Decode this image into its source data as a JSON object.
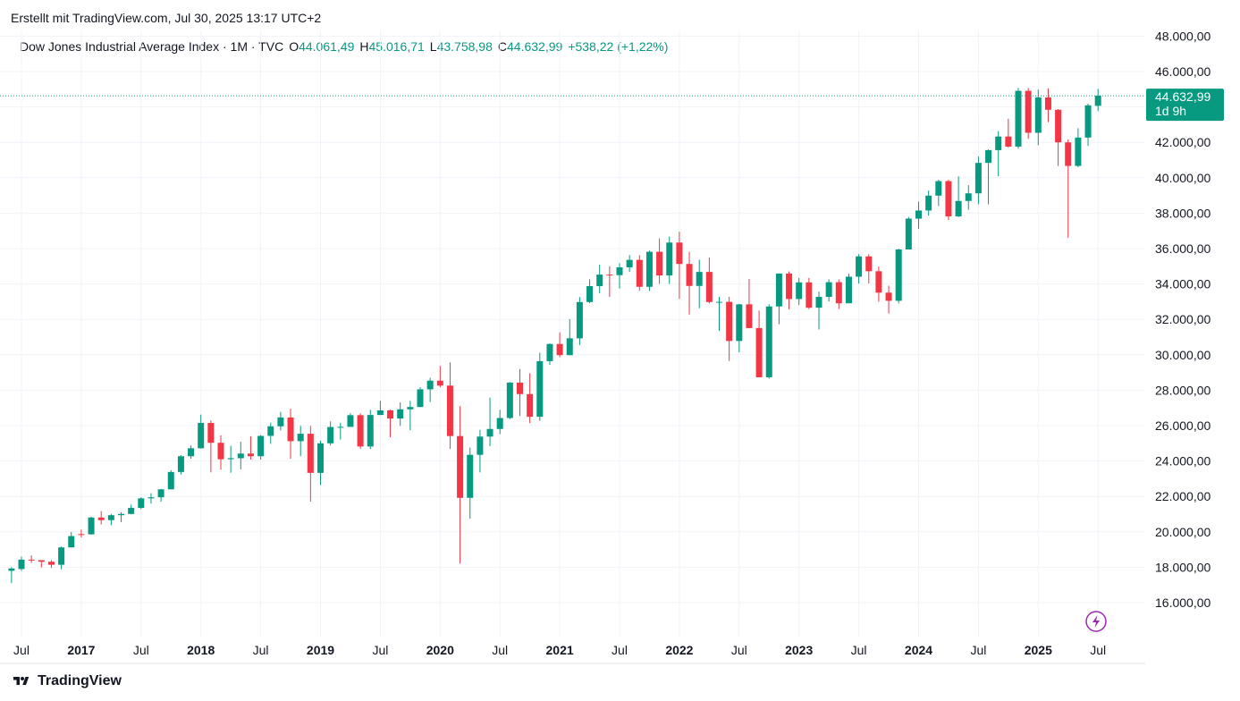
{
  "header": {
    "created_text": "Erstellt mit TradingView.com, Jul 30, 2025 13:17 UTC+2"
  },
  "legend": {
    "symbol": "Dow Jones Industrial Average Index · 1M · TVC",
    "open_label": "O",
    "open_value": "44.061,49",
    "high_label": "H",
    "high_value": "45.016,71",
    "low_label": "L",
    "low_value": "43.758,98",
    "close_label": "C",
    "close_value": "44.632,99",
    "change": "+538,22 (+1,22%)"
  },
  "price_badge": {
    "price": "44.632,99",
    "countdown": "1d 9h"
  },
  "footer": {
    "brand": "TradingView"
  },
  "colors": {
    "up": "#089981",
    "down": "#F23645",
    "grid": "#F0F3FA",
    "text": "#131722",
    "badge": "#089981",
    "lightning": "#9C27B0"
  },
  "chart_data": {
    "type": "candlestick",
    "interval": "1M",
    "y_range": [
      14000,
      48500
    ],
    "y_ticks": [
      16000,
      18000,
      20000,
      22000,
      24000,
      26000,
      28000,
      30000,
      32000,
      34000,
      36000,
      38000,
      40000,
      42000,
      44000,
      46000,
      48000
    ],
    "y_tick_labels": [
      "16.000,00",
      "18.000,00",
      "20.000,00",
      "22.000,00",
      "24.000,00",
      "26.000,00",
      "28.000,00",
      "30.000,00",
      "32.000,00",
      "34.000,00",
      "36.000,00",
      "38.000,00",
      "40.000,00",
      "42.000,00",
      "44.000,00",
      "46.000,00",
      "48.000,00"
    ],
    "x_ticks": [
      {
        "label": "Jul",
        "date": "2016-07",
        "year": false
      },
      {
        "label": "2017",
        "date": "2017-01",
        "year": true
      },
      {
        "label": "Jul",
        "date": "2017-07",
        "year": false
      },
      {
        "label": "2018",
        "date": "2018-01",
        "year": true
      },
      {
        "label": "Jul",
        "date": "2018-07",
        "year": false
      },
      {
        "label": "2019",
        "date": "2019-01",
        "year": true
      },
      {
        "label": "Jul",
        "date": "2019-07",
        "year": false
      },
      {
        "label": "2020",
        "date": "2020-01",
        "year": true
      },
      {
        "label": "Jul",
        "date": "2020-07",
        "year": false
      },
      {
        "label": "2021",
        "date": "2021-01",
        "year": true
      },
      {
        "label": "Jul",
        "date": "2021-07",
        "year": false
      },
      {
        "label": "2022",
        "date": "2022-01",
        "year": true
      },
      {
        "label": "Jul",
        "date": "2022-07",
        "year": false
      },
      {
        "label": "2023",
        "date": "2023-01",
        "year": true
      },
      {
        "label": "Jul",
        "date": "2023-07",
        "year": false
      },
      {
        "label": "2024",
        "date": "2024-01",
        "year": true
      },
      {
        "label": "Jul",
        "date": "2024-07",
        "year": false
      },
      {
        "label": "2025",
        "date": "2025-01",
        "year": true
      },
      {
        "label": "Jul",
        "date": "2025-07",
        "year": false
      }
    ],
    "last_price": 44632.99,
    "candles": [
      {
        "d": "2016-06",
        "o": 17800,
        "h": 18000,
        "l": 17100,
        "c": 17930
      },
      {
        "d": "2016-07",
        "o": 17900,
        "h": 18600,
        "l": 17800,
        "c": 18430
      },
      {
        "d": "2016-08",
        "o": 18430,
        "h": 18670,
        "l": 18240,
        "c": 18400
      },
      {
        "d": "2016-09",
        "o": 18400,
        "h": 18400,
        "l": 17990,
        "c": 18310
      },
      {
        "d": "2016-10",
        "o": 18310,
        "h": 18400,
        "l": 17960,
        "c": 18140
      },
      {
        "d": "2016-11",
        "o": 18140,
        "h": 19170,
        "l": 17880,
        "c": 19120
      },
      {
        "d": "2016-12",
        "o": 19120,
        "h": 19990,
        "l": 19120,
        "c": 19760
      },
      {
        "d": "2017-01",
        "o": 19870,
        "h": 20130,
        "l": 19680,
        "c": 19860
      },
      {
        "d": "2017-02",
        "o": 19860,
        "h": 20850,
        "l": 19830,
        "c": 20810
      },
      {
        "d": "2017-03",
        "o": 20810,
        "h": 21170,
        "l": 20410,
        "c": 20660
      },
      {
        "d": "2017-04",
        "o": 20660,
        "h": 21010,
        "l": 20380,
        "c": 20940
      },
      {
        "d": "2017-05",
        "o": 20940,
        "h": 21110,
        "l": 20550,
        "c": 21010
      },
      {
        "d": "2017-06",
        "o": 21010,
        "h": 21530,
        "l": 20990,
        "c": 21350
      },
      {
        "d": "2017-07",
        "o": 21350,
        "h": 21950,
        "l": 21280,
        "c": 21890
      },
      {
        "d": "2017-08",
        "o": 21890,
        "h": 22180,
        "l": 21600,
        "c": 21950
      },
      {
        "d": "2017-09",
        "o": 21950,
        "h": 22420,
        "l": 21700,
        "c": 22400
      },
      {
        "d": "2017-10",
        "o": 22400,
        "h": 23480,
        "l": 22400,
        "c": 23380
      },
      {
        "d": "2017-11",
        "o": 23380,
        "h": 24330,
        "l": 23240,
        "c": 24270
      },
      {
        "d": "2017-12",
        "o": 24270,
        "h": 24880,
        "l": 24130,
        "c": 24720
      },
      {
        "d": "2018-01",
        "o": 24720,
        "h": 26620,
        "l": 24700,
        "c": 26150
      },
      {
        "d": "2018-02",
        "o": 26150,
        "h": 26300,
        "l": 23360,
        "c": 25030
      },
      {
        "d": "2018-03",
        "o": 25030,
        "h": 25450,
        "l": 23510,
        "c": 24100
      },
      {
        "d": "2018-04",
        "o": 24100,
        "h": 24860,
        "l": 23340,
        "c": 24160
      },
      {
        "d": "2018-05",
        "o": 24160,
        "h": 25090,
        "l": 23530,
        "c": 24420
      },
      {
        "d": "2018-06",
        "o": 24420,
        "h": 25400,
        "l": 24080,
        "c": 24270
      },
      {
        "d": "2018-07",
        "o": 24270,
        "h": 25460,
        "l": 24080,
        "c": 25420
      },
      {
        "d": "2018-08",
        "o": 25420,
        "h": 26170,
        "l": 24970,
        "c": 25960
      },
      {
        "d": "2018-09",
        "o": 25960,
        "h": 26770,
        "l": 25730,
        "c": 26460
      },
      {
        "d": "2018-10",
        "o": 26460,
        "h": 26950,
        "l": 24120,
        "c": 25120
      },
      {
        "d": "2018-11",
        "o": 25120,
        "h": 25980,
        "l": 24270,
        "c": 25540
      },
      {
        "d": "2018-12",
        "o": 25540,
        "h": 25980,
        "l": 21710,
        "c": 23330
      },
      {
        "d": "2019-01",
        "o": 23330,
        "h": 25150,
        "l": 22640,
        "c": 25000
      },
      {
        "d": "2019-02",
        "o": 25000,
        "h": 26240,
        "l": 24880,
        "c": 25920
      },
      {
        "d": "2019-03",
        "o": 25920,
        "h": 26160,
        "l": 25210,
        "c": 25930
      },
      {
        "d": "2019-04",
        "o": 25930,
        "h": 26700,
        "l": 25930,
        "c": 26590
      },
      {
        "d": "2019-05",
        "o": 26590,
        "h": 26700,
        "l": 24690,
        "c": 24820
      },
      {
        "d": "2019-06",
        "o": 24820,
        "h": 26900,
        "l": 24680,
        "c": 26600
      },
      {
        "d": "2019-07",
        "o": 26600,
        "h": 27400,
        "l": 26600,
        "c": 26860
      },
      {
        "d": "2019-08",
        "o": 26860,
        "h": 26900,
        "l": 25340,
        "c": 26400
      },
      {
        "d": "2019-09",
        "o": 26400,
        "h": 27310,
        "l": 25980,
        "c": 26920
      },
      {
        "d": "2019-10",
        "o": 26920,
        "h": 27400,
        "l": 25740,
        "c": 27050
      },
      {
        "d": "2019-11",
        "o": 27050,
        "h": 28170,
        "l": 27050,
        "c": 28050
      },
      {
        "d": "2019-12",
        "o": 28050,
        "h": 28700,
        "l": 27330,
        "c": 28540
      },
      {
        "d": "2020-01",
        "o": 28540,
        "h": 29370,
        "l": 28170,
        "c": 28260
      },
      {
        "d": "2020-02",
        "o": 28260,
        "h": 29570,
        "l": 24680,
        "c": 25410
      },
      {
        "d": "2020-03",
        "o": 25410,
        "h": 27100,
        "l": 18210,
        "c": 21920
      },
      {
        "d": "2020-04",
        "o": 21920,
        "h": 24760,
        "l": 20740,
        "c": 24350
      },
      {
        "d": "2020-05",
        "o": 24350,
        "h": 25760,
        "l": 23360,
        "c": 25380
      },
      {
        "d": "2020-06",
        "o": 25380,
        "h": 27580,
        "l": 24840,
        "c": 25810
      },
      {
        "d": "2020-07",
        "o": 25810,
        "h": 26890,
        "l": 25520,
        "c": 26430
      },
      {
        "d": "2020-08",
        "o": 26430,
        "h": 28460,
        "l": 26370,
        "c": 28430
      },
      {
        "d": "2020-09",
        "o": 28430,
        "h": 29200,
        "l": 26540,
        "c": 27780
      },
      {
        "d": "2020-10",
        "o": 27780,
        "h": 28960,
        "l": 26140,
        "c": 26500
      },
      {
        "d": "2020-11",
        "o": 26500,
        "h": 30120,
        "l": 26270,
        "c": 29640
      },
      {
        "d": "2020-12",
        "o": 29640,
        "h": 30640,
        "l": 29430,
        "c": 30610
      },
      {
        "d": "2021-01",
        "o": 30610,
        "h": 31270,
        "l": 29860,
        "c": 29980
      },
      {
        "d": "2021-02",
        "o": 29980,
        "h": 32010,
        "l": 29980,
        "c": 30930
      },
      {
        "d": "2021-03",
        "o": 30930,
        "h": 33260,
        "l": 30550,
        "c": 32980
      },
      {
        "d": "2021-04",
        "o": 32980,
        "h": 34260,
        "l": 32920,
        "c": 33880
      },
      {
        "d": "2021-05",
        "o": 33880,
        "h": 35090,
        "l": 33470,
        "c": 34530
      },
      {
        "d": "2021-06",
        "o": 34530,
        "h": 35000,
        "l": 33270,
        "c": 34500
      },
      {
        "d": "2021-07",
        "o": 34500,
        "h": 35170,
        "l": 33740,
        "c": 34940
      },
      {
        "d": "2021-08",
        "o": 34940,
        "h": 35630,
        "l": 34690,
        "c": 35360
      },
      {
        "d": "2021-09",
        "o": 35360,
        "h": 35630,
        "l": 33610,
        "c": 33840
      },
      {
        "d": "2021-10",
        "o": 33840,
        "h": 35890,
        "l": 33610,
        "c": 35820
      },
      {
        "d": "2021-11",
        "o": 35820,
        "h": 36570,
        "l": 34010,
        "c": 34480
      },
      {
        "d": "2021-12",
        "o": 34480,
        "h": 36680,
        "l": 34000,
        "c": 36340
      },
      {
        "d": "2022-01",
        "o": 36340,
        "h": 36950,
        "l": 33150,
        "c": 35130
      },
      {
        "d": "2022-02",
        "o": 35130,
        "h": 35820,
        "l": 32270,
        "c": 33890
      },
      {
        "d": "2022-03",
        "o": 33890,
        "h": 35370,
        "l": 32630,
        "c": 34680
      },
      {
        "d": "2022-04",
        "o": 34680,
        "h": 35490,
        "l": 32910,
        "c": 32980
      },
      {
        "d": "2022-05",
        "o": 32980,
        "h": 33270,
        "l": 31350,
        "c": 32990
      },
      {
        "d": "2022-06",
        "o": 32990,
        "h": 33270,
        "l": 29650,
        "c": 30780
      },
      {
        "d": "2022-07",
        "o": 30780,
        "h": 32880,
        "l": 30140,
        "c": 32850
      },
      {
        "d": "2022-08",
        "o": 32850,
        "h": 34280,
        "l": 31510,
        "c": 31510
      },
      {
        "d": "2022-09",
        "o": 31510,
        "h": 32500,
        "l": 28720,
        "c": 28730
      },
      {
        "d": "2022-10",
        "o": 28730,
        "h": 32860,
        "l": 28660,
        "c": 32730
      },
      {
        "d": "2022-11",
        "o": 32730,
        "h": 34590,
        "l": 31730,
        "c": 34590
      },
      {
        "d": "2022-12",
        "o": 34590,
        "h": 34710,
        "l": 32570,
        "c": 33150
      },
      {
        "d": "2023-01",
        "o": 33150,
        "h": 34340,
        "l": 32810,
        "c": 34090
      },
      {
        "d": "2023-02",
        "o": 34090,
        "h": 34340,
        "l": 32580,
        "c": 32660
      },
      {
        "d": "2023-03",
        "o": 32660,
        "h": 33570,
        "l": 31430,
        "c": 33270
      },
      {
        "d": "2023-04",
        "o": 33270,
        "h": 34260,
        "l": 33010,
        "c": 34100
      },
      {
        "d": "2023-05",
        "o": 34100,
        "h": 34260,
        "l": 32590,
        "c": 32910
      },
      {
        "d": "2023-06",
        "o": 32910,
        "h": 34590,
        "l": 32910,
        "c": 34410
      },
      {
        "d": "2023-07",
        "o": 34410,
        "h": 35680,
        "l": 34020,
        "c": 35560
      },
      {
        "d": "2023-08",
        "o": 35560,
        "h": 35680,
        "l": 34030,
        "c": 34720
      },
      {
        "d": "2023-09",
        "o": 34720,
        "h": 34980,
        "l": 33000,
        "c": 33510
      },
      {
        "d": "2023-10",
        "o": 33510,
        "h": 33910,
        "l": 32330,
        "c": 33050
      },
      {
        "d": "2023-11",
        "o": 33050,
        "h": 35990,
        "l": 32900,
        "c": 35950
      },
      {
        "d": "2023-12",
        "o": 35950,
        "h": 37780,
        "l": 35950,
        "c": 37690
      },
      {
        "d": "2024-01",
        "o": 37690,
        "h": 38650,
        "l": 37120,
        "c": 38150
      },
      {
        "d": "2024-02",
        "o": 38150,
        "h": 39280,
        "l": 37860,
        "c": 38990
      },
      {
        "d": "2024-03",
        "o": 38990,
        "h": 39890,
        "l": 38400,
        "c": 39810
      },
      {
        "d": "2024-04",
        "o": 39810,
        "h": 39890,
        "l": 37610,
        "c": 37820
      },
      {
        "d": "2024-05",
        "o": 37820,
        "h": 40080,
        "l": 37780,
        "c": 38690
      },
      {
        "d": "2024-06",
        "o": 38690,
        "h": 39580,
        "l": 38190,
        "c": 39120
      },
      {
        "d": "2024-07",
        "o": 39120,
        "h": 41200,
        "l": 38500,
        "c": 40840
      },
      {
        "d": "2024-08",
        "o": 40840,
        "h": 41600,
        "l": 38500,
        "c": 41560
      },
      {
        "d": "2024-09",
        "o": 41560,
        "h": 42630,
        "l": 40090,
        "c": 42330
      },
      {
        "d": "2024-10",
        "o": 42330,
        "h": 43330,
        "l": 41700,
        "c": 41760
      },
      {
        "d": "2024-11",
        "o": 41760,
        "h": 45070,
        "l": 41640,
        "c": 44910
      },
      {
        "d": "2024-12",
        "o": 44910,
        "h": 45070,
        "l": 42200,
        "c": 42540
      },
      {
        "d": "2025-01",
        "o": 42540,
        "h": 44980,
        "l": 41840,
        "c": 44540
      },
      {
        "d": "2025-02",
        "o": 44540,
        "h": 45050,
        "l": 43140,
        "c": 43840
      },
      {
        "d": "2025-03",
        "o": 43840,
        "h": 43880,
        "l": 40660,
        "c": 42000
      },
      {
        "d": "2025-04",
        "o": 42000,
        "h": 42170,
        "l": 36610,
        "c": 40670
      },
      {
        "d": "2025-05",
        "o": 40670,
        "h": 42800,
        "l": 40600,
        "c": 42270
      },
      {
        "d": "2025-06",
        "o": 42270,
        "h": 44180,
        "l": 41800,
        "c": 44090
      },
      {
        "d": "2025-07",
        "o": 44061.49,
        "h": 45016.71,
        "l": 43758.98,
        "c": 44632.99
      }
    ]
  }
}
